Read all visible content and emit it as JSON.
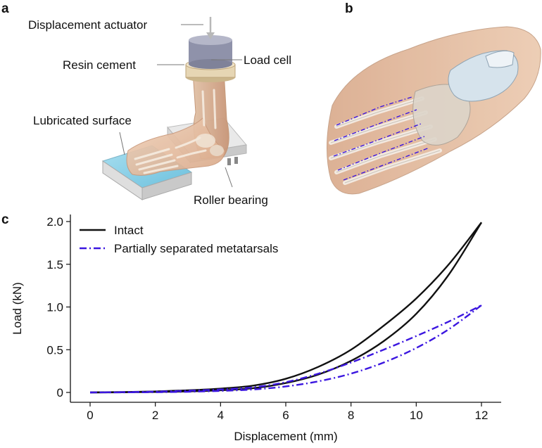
{
  "panels": {
    "a": {
      "letter": "a",
      "labels": {
        "actuator": "Displacement actuator",
        "resin": "Resin cement",
        "load_cell": "Load cell",
        "lubricated": "Lubricated surface",
        "roller": "Roller bearing"
      }
    },
    "b": {
      "letter": "b"
    },
    "c": {
      "letter": "c"
    }
  },
  "chart_data": {
    "type": "line",
    "title": "",
    "xlabel": "Displacement (mm)",
    "ylabel": "Load (kN)",
    "xlim": [
      0,
      12
    ],
    "ylim": [
      0,
      2.0
    ],
    "x_ticks": [
      0,
      2,
      4,
      6,
      8,
      10,
      12
    ],
    "x_tick_labels": [
      "0",
      "2",
      "4",
      "6",
      "8",
      "10",
      "12"
    ],
    "y_ticks": [
      0,
      0.5,
      1.0,
      1.5,
      2.0
    ],
    "y_tick_labels": [
      "0",
      "0.5",
      "1.0",
      "1.5",
      "2.0"
    ],
    "grid": false,
    "legend_position": "top-left",
    "series": [
      {
        "name": "Intact",
        "color": "#111111",
        "style": "solid",
        "loading": {
          "x": [
            0,
            1,
            2,
            3,
            4,
            5,
            6,
            7,
            8,
            9,
            10,
            11,
            12
          ],
          "y": [
            0,
            0.005,
            0.012,
            0.025,
            0.045,
            0.08,
            0.16,
            0.3,
            0.5,
            0.78,
            1.1,
            1.5,
            1.99
          ]
        },
        "unloading": {
          "x": [
            12,
            11,
            10,
            9,
            8,
            7,
            6,
            5,
            4,
            3,
            2,
            1,
            0
          ],
          "y": [
            1.99,
            1.38,
            0.92,
            0.6,
            0.37,
            0.21,
            0.11,
            0.05,
            0.025,
            0.012,
            0.006,
            0.002,
            0
          ]
        }
      },
      {
        "name": "Partially separated metatarsals",
        "color": "#3b16e0",
        "style": "dash-dot",
        "loading": {
          "x": [
            0,
            1,
            2,
            3,
            4,
            5,
            6,
            7,
            8,
            9,
            10,
            11,
            12
          ],
          "y": [
            0,
            0.004,
            0.01,
            0.02,
            0.035,
            0.06,
            0.12,
            0.22,
            0.35,
            0.5,
            0.66,
            0.83,
            1.02
          ]
        },
        "unloading": {
          "x": [
            12,
            11,
            10,
            9,
            8,
            7,
            6,
            5,
            4,
            3,
            2,
            1,
            0
          ],
          "y": [
            1.02,
            0.74,
            0.52,
            0.35,
            0.22,
            0.13,
            0.07,
            0.035,
            0.018,
            0.008,
            0.003,
            0.001,
            0
          ]
        }
      }
    ]
  },
  "colors": {
    "skin": "#e8c3a6",
    "bone": "#ddd7cc",
    "lubricated": "#8ed0e6",
    "cylinder": "#9a9cb2",
    "cement": "#e6d6b4",
    "platform": "#d8d8d8",
    "dashed_marker": "#3b16e0"
  },
  "icons": {
    "panel_a": "foot-apparatus-illustration",
    "panel_b": "foot-bone-render"
  }
}
